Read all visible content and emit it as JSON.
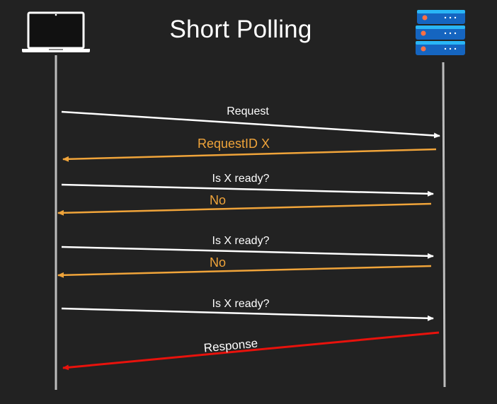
{
  "diagram": {
    "title": "Short Polling",
    "colors": {
      "background": "#222222",
      "border": "#000000",
      "lifeline": "#bdbdbd",
      "request": "#ffffff",
      "poll_reply": "#f0a43a",
      "final_response": "#e8120c",
      "server_body": "#1565c0",
      "server_light": "#29b6f6",
      "server_led": "#ff7043"
    },
    "participants": [
      {
        "name": "client",
        "icon": "laptop-icon"
      },
      {
        "name": "server",
        "icon": "server-icon"
      }
    ],
    "messages": [
      {
        "label": "Request",
        "direction": "client-to-server",
        "color": "#ffffff"
      },
      {
        "label": "RequestID X",
        "direction": "server-to-client",
        "color": "#f0a43a"
      },
      {
        "label": "Is X ready?",
        "direction": "client-to-server",
        "color": "#ffffff"
      },
      {
        "label": "No",
        "direction": "server-to-client",
        "color": "#f0a43a"
      },
      {
        "label": "Is X ready?",
        "direction": "client-to-server",
        "color": "#ffffff"
      },
      {
        "label": "No",
        "direction": "server-to-client",
        "color": "#f0a43a"
      },
      {
        "label": "Is X ready?",
        "direction": "client-to-server",
        "color": "#ffffff"
      },
      {
        "label": "Response",
        "direction": "server-to-client",
        "color": "#e8120c"
      }
    ]
  }
}
